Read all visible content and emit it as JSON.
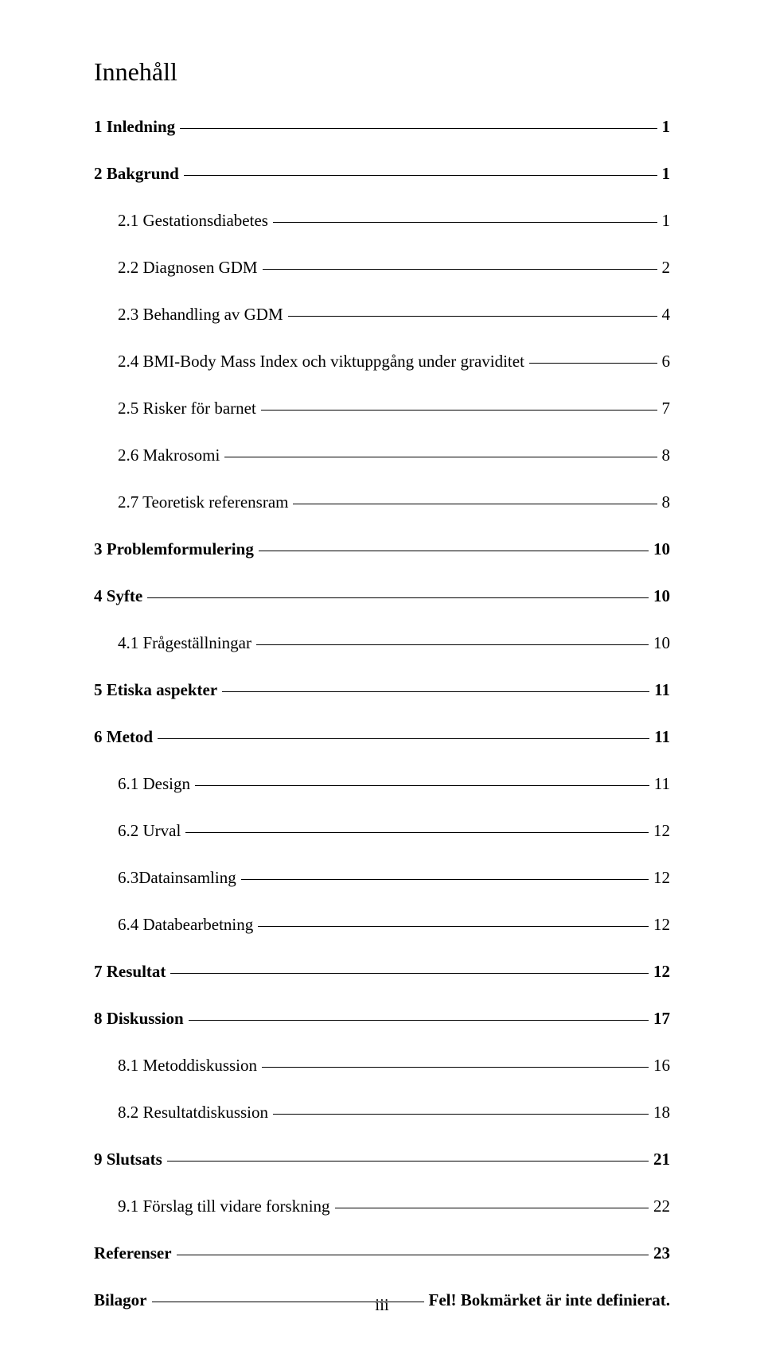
{
  "title": "Innehåll",
  "page_number": "iii",
  "toc": [
    {
      "level": 1,
      "text": "1 Inledning",
      "page": "1"
    },
    {
      "level": 1,
      "text": "2 Bakgrund",
      "page": "1"
    },
    {
      "level": 2,
      "text": "2.1 Gestationsdiabetes",
      "page": "1"
    },
    {
      "level": 2,
      "text": "2.2 Diagnosen GDM",
      "page": "2"
    },
    {
      "level": 2,
      "text": "2.3 Behandling av GDM",
      "page": "4"
    },
    {
      "level": 2,
      "text": "2.4 BMI-Body Mass Index och viktuppgång under graviditet",
      "page": "6"
    },
    {
      "level": 2,
      "text": "2.5 Risker för barnet",
      "page": "7"
    },
    {
      "level": 2,
      "text": "2.6 Makrosomi",
      "page": "8"
    },
    {
      "level": 2,
      "text": "2.7 Teoretisk referensram",
      "page": "8"
    },
    {
      "level": 1,
      "text": "3 Problemformulering",
      "page": "10"
    },
    {
      "level": 1,
      "text": "4 Syfte",
      "page": "10"
    },
    {
      "level": 2,
      "text": "4.1 Frågeställningar",
      "page": "10"
    },
    {
      "level": 1,
      "text": "5 Etiska aspekter",
      "page": "11"
    },
    {
      "level": 1,
      "text": "6 Metod",
      "page": "11"
    },
    {
      "level": 2,
      "text": "6.1 Design",
      "page": "11"
    },
    {
      "level": 2,
      "text": "6.2 Urval",
      "page": "12"
    },
    {
      "level": 2,
      "text": "6.3Datainsamling",
      "page": "12"
    },
    {
      "level": 2,
      "text": "6.4 Databearbetning",
      "page": "12"
    },
    {
      "level": 1,
      "text": "7 Resultat",
      "page": "12"
    },
    {
      "level": 1,
      "text": "8 Diskussion",
      "page": "17"
    },
    {
      "level": 2,
      "text": "8.1 Metoddiskussion",
      "page": "16"
    },
    {
      "level": 2,
      "text": "8.2 Resultatdiskussion",
      "page": "18"
    },
    {
      "level": 1,
      "text": "9 Slutsats",
      "page": "21"
    },
    {
      "level": 2,
      "text": "9.1 Förslag till vidare forskning",
      "page": "22"
    },
    {
      "level": 1,
      "text": "Referenser",
      "page": "23"
    },
    {
      "level": 1,
      "text": "Bilagor",
      "page": "Fel! Bokmärket är inte definierat."
    }
  ]
}
